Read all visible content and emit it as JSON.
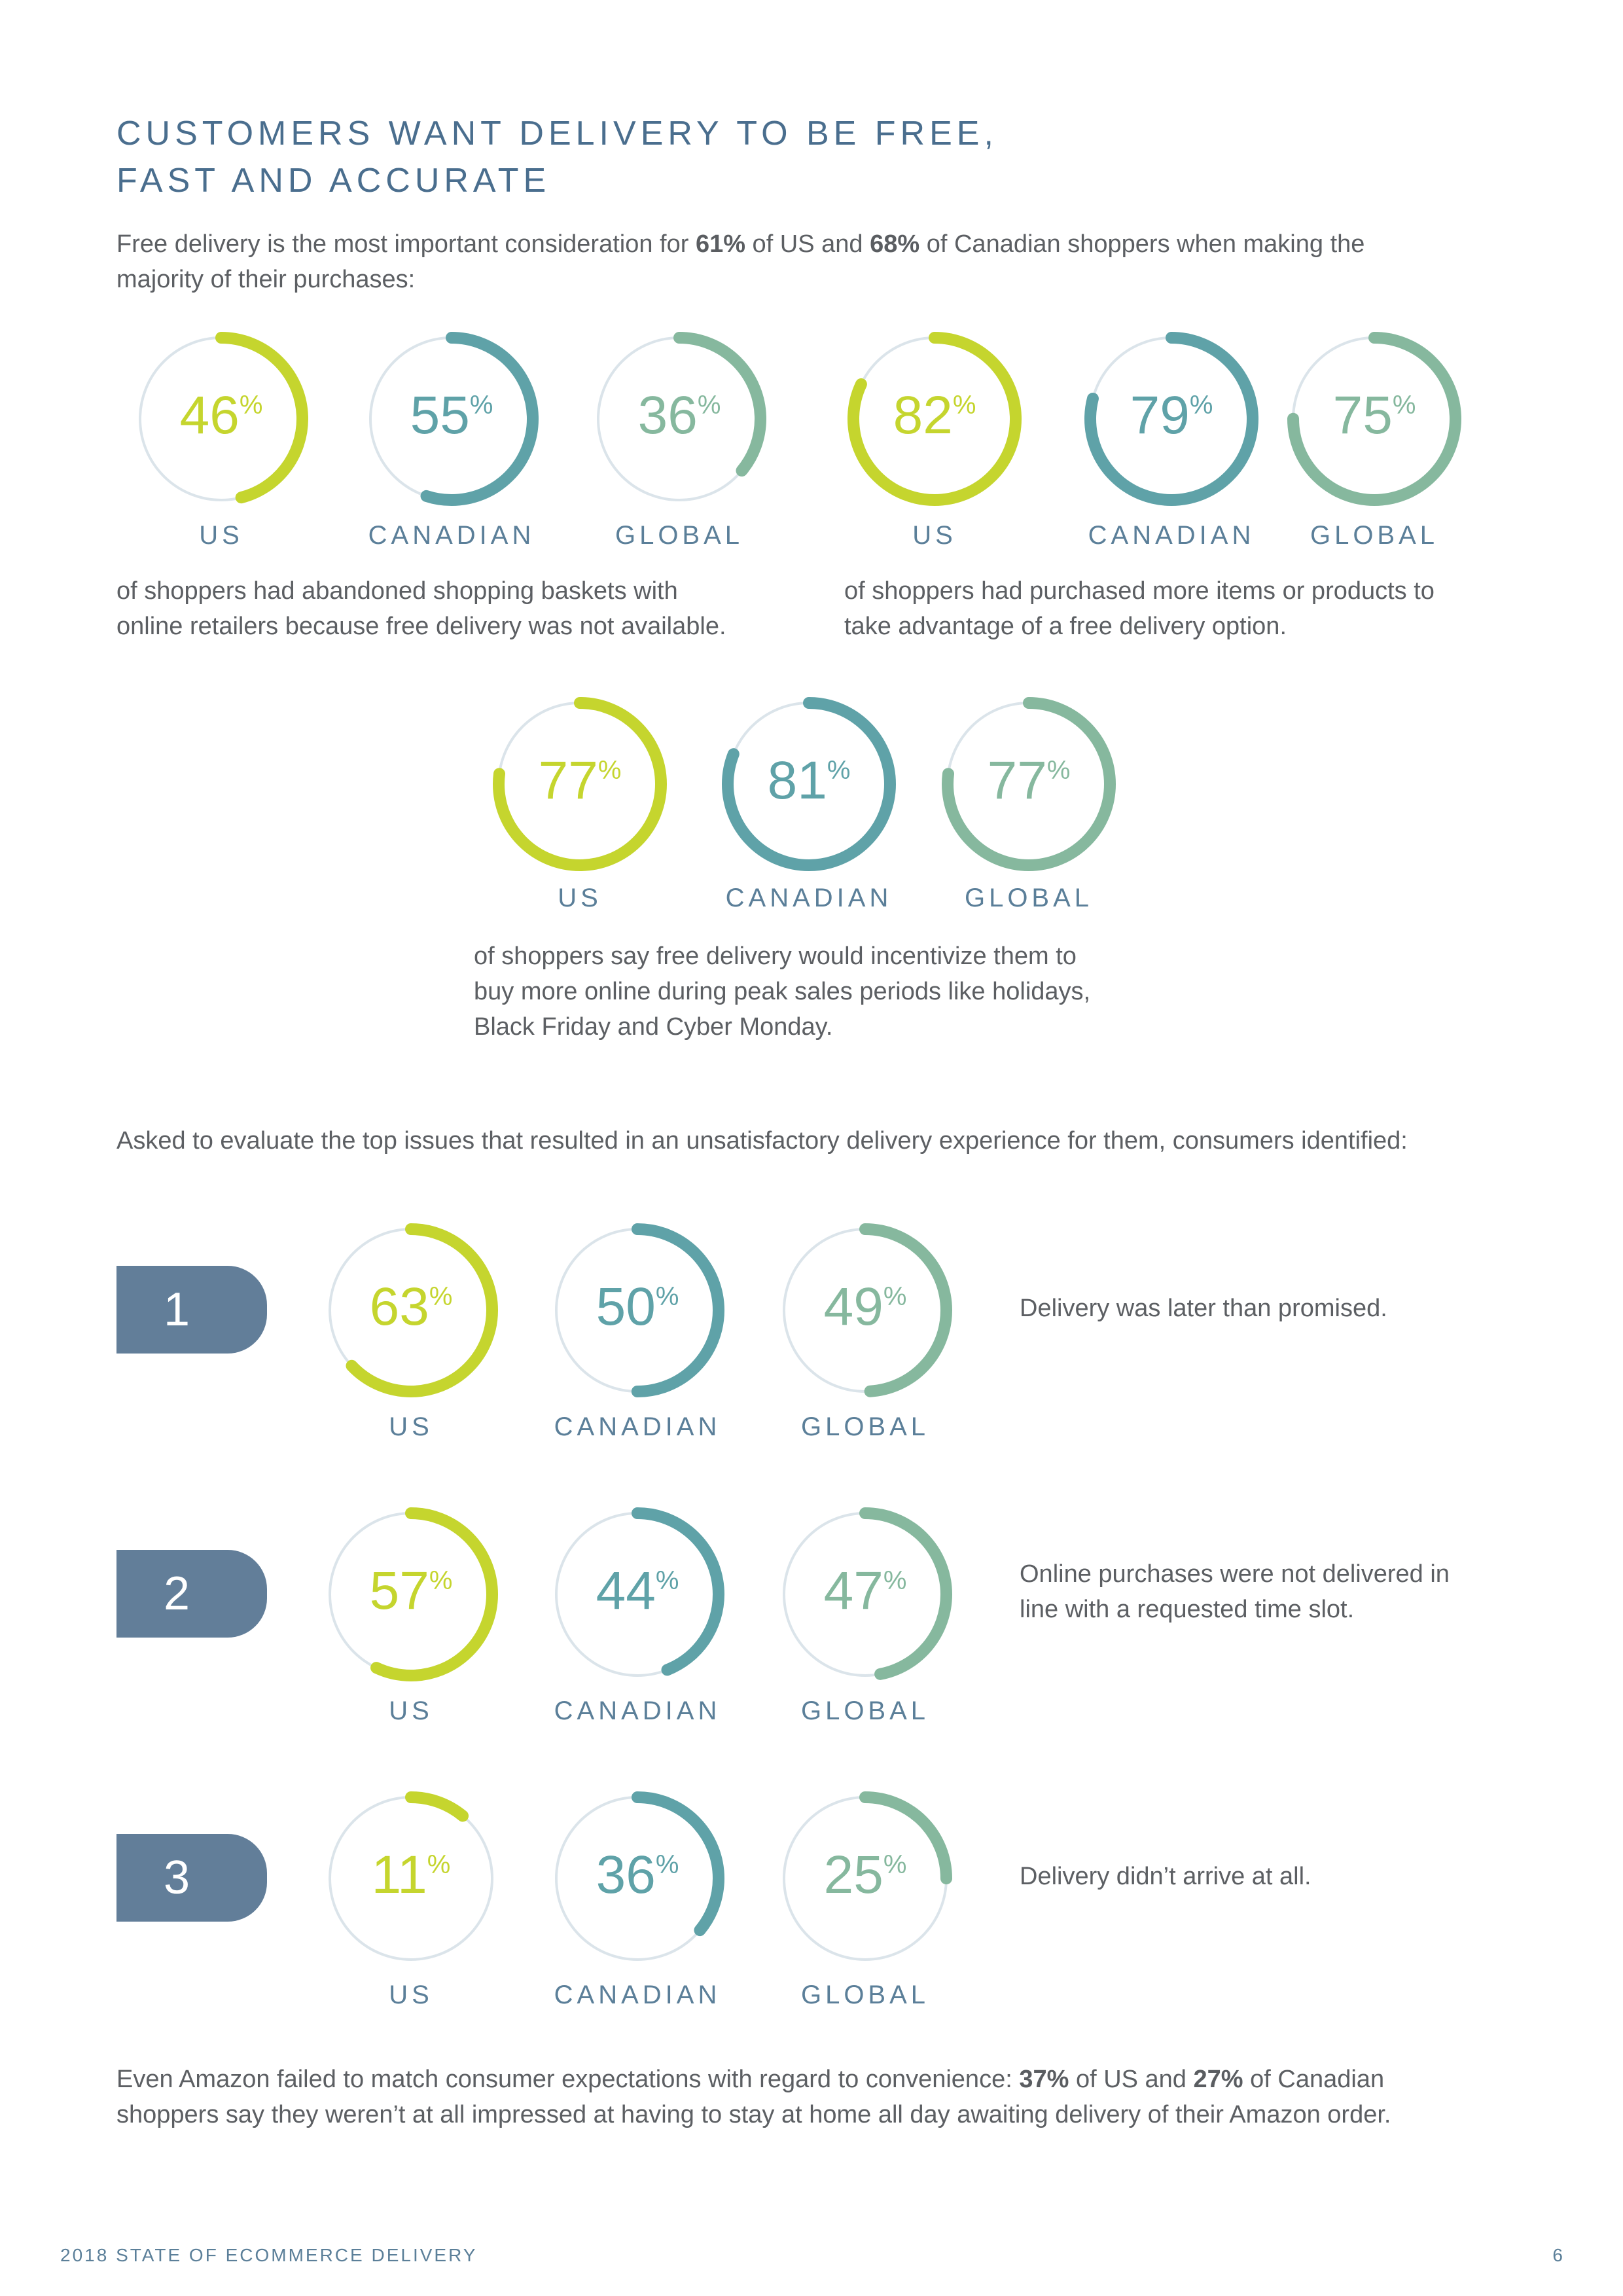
{
  "heading": {
    "line1": "CUSTOMERS WANT DELIVERY TO BE FREE,",
    "line2": "FAST AND ACCURATE"
  },
  "intro": {
    "pre": "Free delivery is the most important consideration for ",
    "us_pct": "61%",
    "mid": " of US and ",
    "ca_pct": "68%",
    "post": " of Canadian shoppers when making the",
    "line2": "majority of their purchases:"
  },
  "colors": {
    "us": "#c5d52e",
    "canadian": "#5fa2a8",
    "global": "#86b89e",
    "track": "#dbe4ea",
    "rank_bg": "#627e99"
  },
  "group_a": {
    "caption_line1": "of shoppers had abandoned shopping baskets with",
    "caption_line2": "online retailers because free delivery was not available.",
    "stats": [
      {
        "label": "US",
        "value": 46
      },
      {
        "label": "CANADIAN",
        "value": 55
      },
      {
        "label": "GLOBAL",
        "value": 36
      }
    ]
  },
  "group_b": {
    "caption_line1": "of shoppers had purchased more items or products to",
    "caption_line2": "take advantage of a free delivery option.",
    "stats": [
      {
        "label": "US",
        "value": 82
      },
      {
        "label": "CANADIAN",
        "value": 79
      },
      {
        "label": "GLOBAL",
        "value": 75
      }
    ]
  },
  "group_c": {
    "caption_line1": "of shoppers say free delivery would incentivize them to",
    "caption_line2": "buy more online during peak sales periods like holidays,",
    "caption_line3": "Black Friday and Cyber Monday.",
    "stats": [
      {
        "label": "US",
        "value": 77
      },
      {
        "label": "CANADIAN",
        "value": 81
      },
      {
        "label": "GLOBAL",
        "value": 77
      }
    ]
  },
  "issues_intro": "Asked to evaluate the top issues that resulted in an unsatisfactory delivery experience for them, consumers identified:",
  "issues": [
    {
      "rank": "1",
      "text_line1": "Delivery was later than promised.",
      "text_line2": "",
      "stats": [
        {
          "label": "US",
          "value": 63
        },
        {
          "label": "CANADIAN",
          "value": 50
        },
        {
          "label": "GLOBAL",
          "value": 49
        }
      ]
    },
    {
      "rank": "2",
      "text_line1": "Online purchases were not delivered in",
      "text_line2": "line with a requested time slot.",
      "stats": [
        {
          "label": "US",
          "value": 57
        },
        {
          "label": "CANADIAN",
          "value": 44
        },
        {
          "label": "GLOBAL",
          "value": 47
        }
      ]
    },
    {
      "rank": "3",
      "text_line1": "Delivery didn’t arrive at all.",
      "text_line2": "",
      "stats": [
        {
          "label": "US",
          "value": 11
        },
        {
          "label": "CANADIAN",
          "value": 36
        },
        {
          "label": "GLOBAL",
          "value": 25
        }
      ]
    }
  ],
  "closing": {
    "pre": "Even Amazon failed to match consumer expectations with regard to convenience: ",
    "us_pct": "37%",
    "mid": " of US and ",
    "ca_pct": "27%",
    "post": " of Canadian",
    "line2": "shoppers say they weren’t at all impressed at having to stay at home all day awaiting delivery of their Amazon order."
  },
  "footer": {
    "left": "2018 STATE OF ECOMMERCE DELIVERY",
    "page_number": "6"
  }
}
